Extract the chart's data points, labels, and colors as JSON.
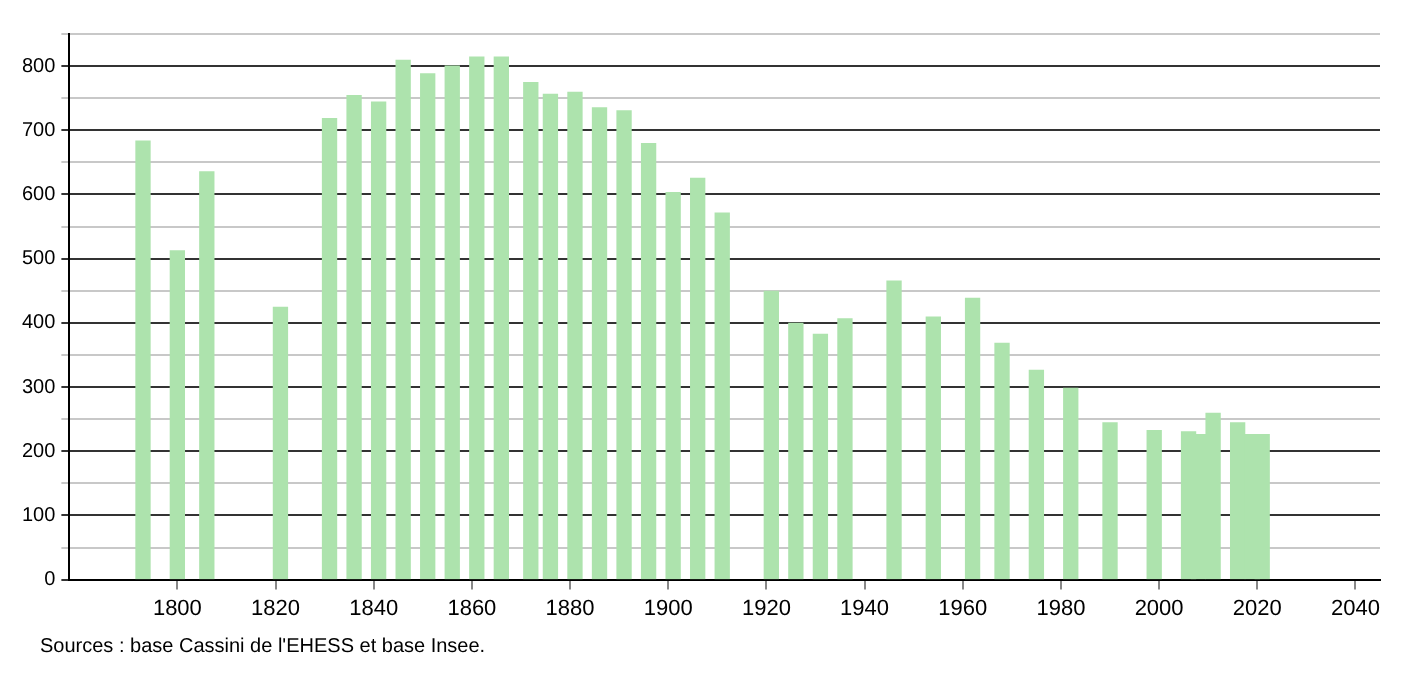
{
  "chart_data": {
    "type": "bar",
    "x": [
      1793,
      1800,
      1806,
      1821,
      1831,
      1836,
      1841,
      1846,
      1851,
      1856,
      1861,
      1866,
      1872,
      1876,
      1881,
      1886,
      1891,
      1896,
      1901,
      1906,
      1911,
      1921,
      1926,
      1931,
      1936,
      1946,
      1954,
      1962,
      1968,
      1975,
      1982,
      1990,
      1999,
      2006,
      2008,
      2011,
      2016,
      2019,
      2021
    ],
    "values": [
      683,
      512,
      635,
      424,
      718,
      754,
      744,
      809,
      788,
      800,
      814,
      814,
      774,
      756,
      759,
      735,
      730,
      679,
      603,
      625,
      571,
      449,
      399,
      382,
      406,
      465,
      409,
      438,
      368,
      326,
      298,
      244,
      232,
      230,
      226,
      259,
      244,
      226,
      226
    ],
    "color": "#ade3ad",
    "xlim": [
      1778,
      2045
    ],
    "xticks": [
      1800,
      1820,
      1840,
      1860,
      1880,
      1900,
      1920,
      1940,
      1960,
      1980,
      2000,
      2020,
      2040
    ],
    "ylim": [
      0,
      850
    ],
    "yticks": [
      0,
      {
        "value": 50,
        "label": null
      },
      100,
      {
        "value": 150,
        "label": null
      },
      200,
      {
        "value": 250,
        "label": null
      },
      300,
      {
        "value": 350,
        "label": null
      },
      400,
      {
        "value": 450,
        "label": null
      },
      500,
      {
        "value": 550,
        "label": null
      },
      600,
      {
        "value": 650,
        "label": null
      },
      700,
      {
        "value": 750,
        "label": null
      },
      800,
      {
        "value": 850,
        "label": null
      }
    ],
    "grid": "y",
    "legend": false,
    "annotations": [
      "Sources : base Cassini de l'EHESS et base Insee."
    ]
  }
}
